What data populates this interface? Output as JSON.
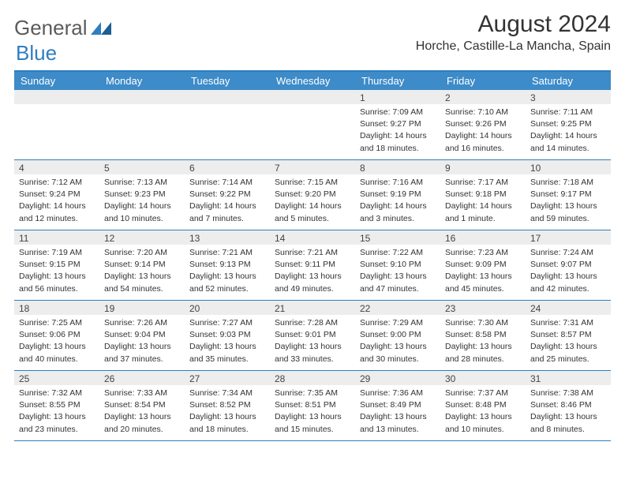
{
  "brand": {
    "part1": "General",
    "part2": "Blue"
  },
  "title": "August 2024",
  "location": "Horche, Castille-La Mancha, Spain",
  "colors": {
    "header_bg": "#3d8bc8",
    "border": "#2f7ec0",
    "date_bar_bg": "#ededed",
    "text": "#333333",
    "logo_gray": "#5b5b5b",
    "logo_blue": "#2f7ec0"
  },
  "day_names": [
    "Sunday",
    "Monday",
    "Tuesday",
    "Wednesday",
    "Thursday",
    "Friday",
    "Saturday"
  ],
  "weeks": [
    [
      null,
      null,
      null,
      null,
      {
        "d": "1",
        "sr": "Sunrise: 7:09 AM",
        "ss": "Sunset: 9:27 PM",
        "dl1": "Daylight: 14 hours",
        "dl2": "and 18 minutes."
      },
      {
        "d": "2",
        "sr": "Sunrise: 7:10 AM",
        "ss": "Sunset: 9:26 PM",
        "dl1": "Daylight: 14 hours",
        "dl2": "and 16 minutes."
      },
      {
        "d": "3",
        "sr": "Sunrise: 7:11 AM",
        "ss": "Sunset: 9:25 PM",
        "dl1": "Daylight: 14 hours",
        "dl2": "and 14 minutes."
      }
    ],
    [
      {
        "d": "4",
        "sr": "Sunrise: 7:12 AM",
        "ss": "Sunset: 9:24 PM",
        "dl1": "Daylight: 14 hours",
        "dl2": "and 12 minutes."
      },
      {
        "d": "5",
        "sr": "Sunrise: 7:13 AM",
        "ss": "Sunset: 9:23 PM",
        "dl1": "Daylight: 14 hours",
        "dl2": "and 10 minutes."
      },
      {
        "d": "6",
        "sr": "Sunrise: 7:14 AM",
        "ss": "Sunset: 9:22 PM",
        "dl1": "Daylight: 14 hours",
        "dl2": "and 7 minutes."
      },
      {
        "d": "7",
        "sr": "Sunrise: 7:15 AM",
        "ss": "Sunset: 9:20 PM",
        "dl1": "Daylight: 14 hours",
        "dl2": "and 5 minutes."
      },
      {
        "d": "8",
        "sr": "Sunrise: 7:16 AM",
        "ss": "Sunset: 9:19 PM",
        "dl1": "Daylight: 14 hours",
        "dl2": "and 3 minutes."
      },
      {
        "d": "9",
        "sr": "Sunrise: 7:17 AM",
        "ss": "Sunset: 9:18 PM",
        "dl1": "Daylight: 14 hours",
        "dl2": "and 1 minute."
      },
      {
        "d": "10",
        "sr": "Sunrise: 7:18 AM",
        "ss": "Sunset: 9:17 PM",
        "dl1": "Daylight: 13 hours",
        "dl2": "and 59 minutes."
      }
    ],
    [
      {
        "d": "11",
        "sr": "Sunrise: 7:19 AM",
        "ss": "Sunset: 9:15 PM",
        "dl1": "Daylight: 13 hours",
        "dl2": "and 56 minutes."
      },
      {
        "d": "12",
        "sr": "Sunrise: 7:20 AM",
        "ss": "Sunset: 9:14 PM",
        "dl1": "Daylight: 13 hours",
        "dl2": "and 54 minutes."
      },
      {
        "d": "13",
        "sr": "Sunrise: 7:21 AM",
        "ss": "Sunset: 9:13 PM",
        "dl1": "Daylight: 13 hours",
        "dl2": "and 52 minutes."
      },
      {
        "d": "14",
        "sr": "Sunrise: 7:21 AM",
        "ss": "Sunset: 9:11 PM",
        "dl1": "Daylight: 13 hours",
        "dl2": "and 49 minutes."
      },
      {
        "d": "15",
        "sr": "Sunrise: 7:22 AM",
        "ss": "Sunset: 9:10 PM",
        "dl1": "Daylight: 13 hours",
        "dl2": "and 47 minutes."
      },
      {
        "d": "16",
        "sr": "Sunrise: 7:23 AM",
        "ss": "Sunset: 9:09 PM",
        "dl1": "Daylight: 13 hours",
        "dl2": "and 45 minutes."
      },
      {
        "d": "17",
        "sr": "Sunrise: 7:24 AM",
        "ss": "Sunset: 9:07 PM",
        "dl1": "Daylight: 13 hours",
        "dl2": "and 42 minutes."
      }
    ],
    [
      {
        "d": "18",
        "sr": "Sunrise: 7:25 AM",
        "ss": "Sunset: 9:06 PM",
        "dl1": "Daylight: 13 hours",
        "dl2": "and 40 minutes."
      },
      {
        "d": "19",
        "sr": "Sunrise: 7:26 AM",
        "ss": "Sunset: 9:04 PM",
        "dl1": "Daylight: 13 hours",
        "dl2": "and 37 minutes."
      },
      {
        "d": "20",
        "sr": "Sunrise: 7:27 AM",
        "ss": "Sunset: 9:03 PM",
        "dl1": "Daylight: 13 hours",
        "dl2": "and 35 minutes."
      },
      {
        "d": "21",
        "sr": "Sunrise: 7:28 AM",
        "ss": "Sunset: 9:01 PM",
        "dl1": "Daylight: 13 hours",
        "dl2": "and 33 minutes."
      },
      {
        "d": "22",
        "sr": "Sunrise: 7:29 AM",
        "ss": "Sunset: 9:00 PM",
        "dl1": "Daylight: 13 hours",
        "dl2": "and 30 minutes."
      },
      {
        "d": "23",
        "sr": "Sunrise: 7:30 AM",
        "ss": "Sunset: 8:58 PM",
        "dl1": "Daylight: 13 hours",
        "dl2": "and 28 minutes."
      },
      {
        "d": "24",
        "sr": "Sunrise: 7:31 AM",
        "ss": "Sunset: 8:57 PM",
        "dl1": "Daylight: 13 hours",
        "dl2": "and 25 minutes."
      }
    ],
    [
      {
        "d": "25",
        "sr": "Sunrise: 7:32 AM",
        "ss": "Sunset: 8:55 PM",
        "dl1": "Daylight: 13 hours",
        "dl2": "and 23 minutes."
      },
      {
        "d": "26",
        "sr": "Sunrise: 7:33 AM",
        "ss": "Sunset: 8:54 PM",
        "dl1": "Daylight: 13 hours",
        "dl2": "and 20 minutes."
      },
      {
        "d": "27",
        "sr": "Sunrise: 7:34 AM",
        "ss": "Sunset: 8:52 PM",
        "dl1": "Daylight: 13 hours",
        "dl2": "and 18 minutes."
      },
      {
        "d": "28",
        "sr": "Sunrise: 7:35 AM",
        "ss": "Sunset: 8:51 PM",
        "dl1": "Daylight: 13 hours",
        "dl2": "and 15 minutes."
      },
      {
        "d": "29",
        "sr": "Sunrise: 7:36 AM",
        "ss": "Sunset: 8:49 PM",
        "dl1": "Daylight: 13 hours",
        "dl2": "and 13 minutes."
      },
      {
        "d": "30",
        "sr": "Sunrise: 7:37 AM",
        "ss": "Sunset: 8:48 PM",
        "dl1": "Daylight: 13 hours",
        "dl2": "and 10 minutes."
      },
      {
        "d": "31",
        "sr": "Sunrise: 7:38 AM",
        "ss": "Sunset: 8:46 PM",
        "dl1": "Daylight: 13 hours",
        "dl2": "and 8 minutes."
      }
    ]
  ]
}
